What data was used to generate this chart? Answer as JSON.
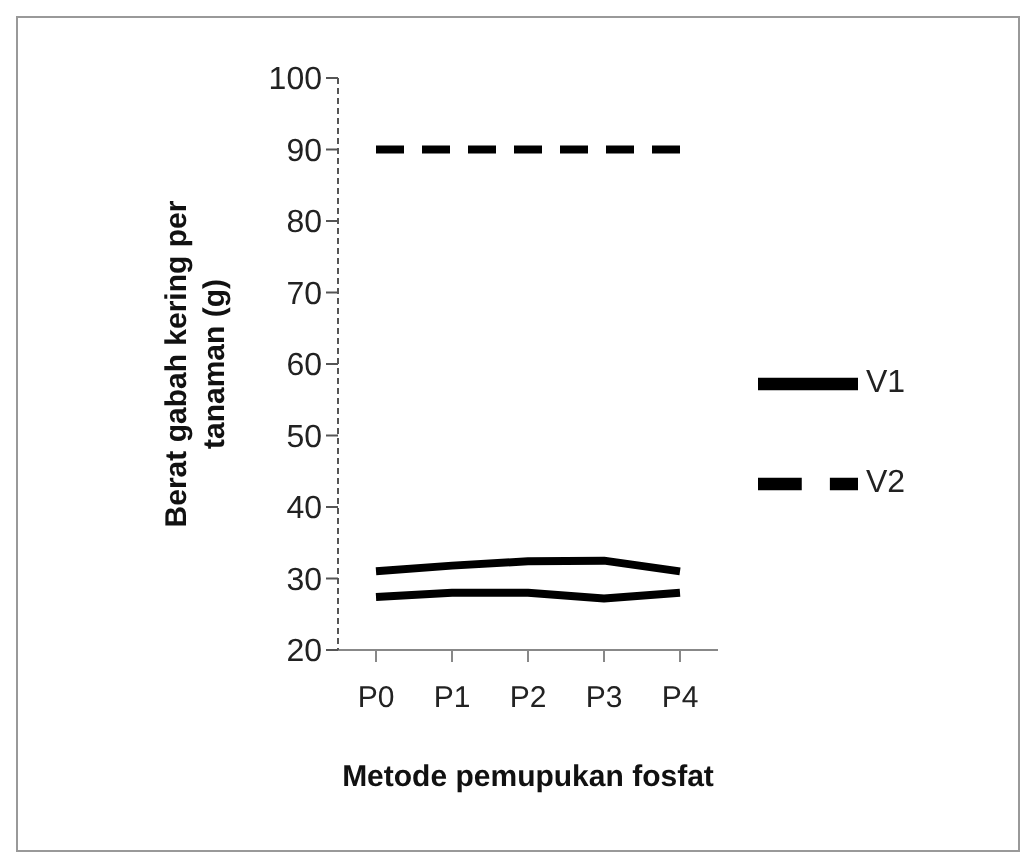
{
  "chart_data": {
    "type": "line",
    "categories": [
      "P0",
      "P1",
      "P2",
      "P3",
      "P4"
    ],
    "xlabel": "Metode  pemupukan fosfat",
    "ylabel": "Berat gabah kering per tanaman  (g)",
    "ylim": [
      20,
      100
    ],
    "yticks": [
      20,
      30,
      40,
      50,
      60,
      70,
      80,
      90,
      100
    ],
    "grid": false,
    "legend": "right",
    "marker": "none",
    "series": [
      {
        "name": "V1",
        "color": "#000000",
        "line_style": "solid",
        "values": [
          31,
          31.8,
          32.4,
          32.5,
          31
        ]
      },
      {
        "color": "#000000",
        "line_style": "solid",
        "values": [
          27.4,
          28,
          28,
          27.2,
          28
        ]
      },
      {
        "name": "V2",
        "color": "#000000",
        "line_style": "dashed",
        "values": [
          90,
          90,
          90,
          90,
          90
        ]
      }
    ]
  }
}
